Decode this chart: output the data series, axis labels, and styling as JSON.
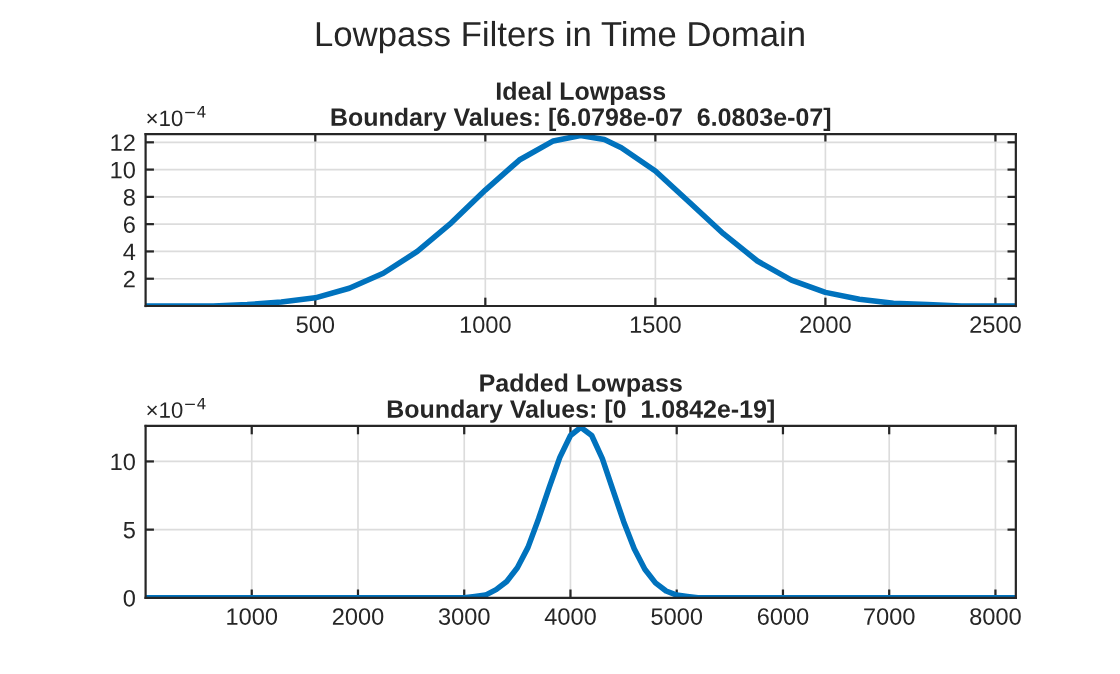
{
  "chart_data": [
    {
      "type": "line",
      "title": "Ideal Lowpass",
      "subtitle": "Boundary Values: [6.0798e-07  6.0803e-07]",
      "annotations": [
        "×10$^{−4}$",
        "Lowpass Filters in Time Domain"
      ],
      "x": [
        1,
        100,
        200,
        300,
        400,
        500,
        600,
        700,
        800,
        900,
        1000,
        1100,
        1200,
        1280,
        1350,
        1400,
        1500,
        1600,
        1700,
        1800,
        1900,
        2000,
        2100,
        2200,
        2300,
        2400,
        2560
      ],
      "series": [
        {
          "color": "#0072bd",
          "values": [
            0,
            0,
            0,
            0.1,
            0.3,
            0.6,
            1.3,
            2.4,
            4.0,
            6.1,
            8.5,
            10.7,
            12.1,
            12.5,
            12.2,
            11.6,
            9.9,
            7.6,
            5.3,
            3.3,
            1.9,
            1.0,
            0.5,
            0.2,
            0.1,
            0,
            0
          ]
        }
      ],
      "xlim": [
        1,
        2560
      ],
      "xticks": [
        500,
        1000,
        1500,
        2000,
        2500
      ],
      "ylim": [
        0,
        12.6
      ],
      "yticks": [
        2,
        4,
        6,
        8,
        10,
        12
      ],
      "grid": true,
      "line_style": "solid",
      "marker": "none"
    },
    {
      "type": "line",
      "title": "Padded Lowpass",
      "subtitle": "Boundary Values: [0  1.0842e-19]",
      "annotations": [
        "×10$^{−4}$"
      ],
      "x": [
        1,
        2000,
        2500,
        2800,
        3000,
        3100,
        3200,
        3300,
        3400,
        3500,
        3600,
        3700,
        3800,
        3900,
        4000,
        4097,
        4200,
        4300,
        4400,
        4500,
        4600,
        4700,
        4800,
        4900,
        5000,
        5100,
        5200,
        5400,
        5700,
        6000,
        7000,
        8192
      ],
      "series": [
        {
          "color": "#0072bd",
          "values": [
            0,
            0,
            0,
            0,
            0,
            0.1,
            0.2,
            0.6,
            1.2,
            2.2,
            3.7,
            5.8,
            8.1,
            10.3,
            11.9,
            12.5,
            11.9,
            10.2,
            7.9,
            5.6,
            3.6,
            2.1,
            1.1,
            0.5,
            0.2,
            0.1,
            0,
            0,
            0,
            0,
            0,
            0
          ]
        }
      ],
      "xlim": [
        1,
        8192
      ],
      "xticks": [
        1000,
        2000,
        3000,
        4000,
        5000,
        6000,
        7000,
        8000
      ],
      "ylim": [
        0,
        12.6
      ],
      "yticks": [
        0,
        5,
        10
      ],
      "grid": true,
      "line_style": "solid",
      "marker": "none"
    }
  ]
}
